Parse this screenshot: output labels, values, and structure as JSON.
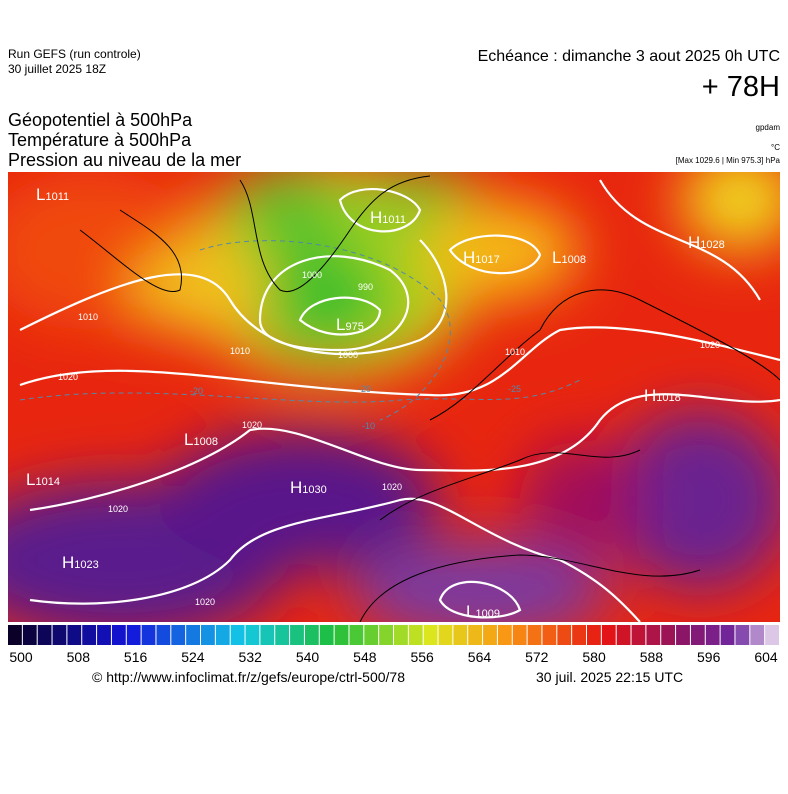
{
  "header": {
    "run": "Run GEFS (run controle)",
    "run_date": "30 juillet 2025 18Z",
    "valid": "Echéance : dimanche 3 aout 2025 0h UTC",
    "lead": "+ 78H",
    "titles": [
      "Géopotentiel à 500hPa",
      "Température à 500hPa",
      "Pression au niveau de la mer"
    ],
    "unit_geo": "gpdam",
    "unit_temp": "°C",
    "extremes": "[Max 1029.6 | Min 975.3] hPa"
  },
  "map": {
    "centers": [
      {
        "kind": "L",
        "value": "1011"
      },
      {
        "kind": "H",
        "value": "1011"
      },
      {
        "kind": "H",
        "value": "1017"
      },
      {
        "kind": "L",
        "value": "1008"
      },
      {
        "kind": "H",
        "value": "1028"
      },
      {
        "kind": "L",
        "value": "975"
      },
      {
        "kind": "H",
        "value": "1018"
      },
      {
        "kind": "L",
        "value": "1008"
      },
      {
        "kind": "L",
        "value": "1014"
      },
      {
        "kind": "H",
        "value": "1030"
      },
      {
        "kind": "H",
        "value": "1023"
      },
      {
        "kind": "L",
        "value": "1009"
      }
    ],
    "contour_labels": [
      "1010",
      "1020",
      "1000",
      "990",
      "1000",
      "1010",
      "1020",
      "1020",
      "1020",
      "1020",
      "1020",
      "1010",
      "-20",
      "-20",
      "-10",
      "-25"
    ]
  },
  "colorbar": {
    "ticks": [
      500,
      508,
      516,
      524,
      532,
      540,
      548,
      556,
      564,
      572,
      580,
      588,
      596,
      604
    ]
  },
  "footer": {
    "source": "© http://www.infoclimat.fr/z/gefs/europe/ctrl-500/78",
    "generated": "30 juil. 2025 22:15 UTC"
  }
}
